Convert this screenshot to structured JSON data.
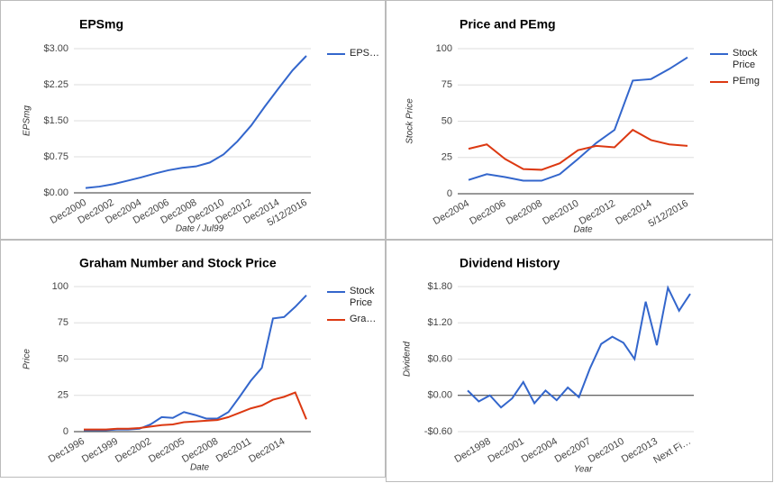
{
  "chart_data": [
    {
      "type": "line",
      "title": "EPSmg",
      "xlabel": "Date / Jul99",
      "ylabel": "EPSmg",
      "legend": "right",
      "categories": [
        "Dec2000",
        null,
        "Dec2002",
        null,
        "Dec2004",
        null,
        "Dec2006",
        null,
        "Dec2008",
        null,
        "Dec2010",
        null,
        "Dec2012",
        null,
        "Dec2014",
        null,
        "5/12/2016"
      ],
      "series": [
        {
          "name": "EPS…",
          "color": "#3366cc",
          "values": [
            0.1,
            0.13,
            0.18,
            0.25,
            0.32,
            0.4,
            0.47,
            0.52,
            0.55,
            0.63,
            0.8,
            1.07,
            1.4,
            1.8,
            2.18,
            2.55,
            2.85
          ]
        }
      ],
      "ylim": [
        0,
        3
      ],
      "yticks": [
        {
          "value": 0,
          "label": "$0.00"
        },
        {
          "value": 0.75,
          "label": "$0.75"
        },
        {
          "value": 1.5,
          "label": "$1.50"
        },
        {
          "value": 2.25,
          "label": "$2.25"
        },
        {
          "value": 3,
          "label": "$3.00"
        }
      ],
      "grid": true
    },
    {
      "type": "line",
      "title": "Price and PEmg",
      "xlabel": "Date",
      "ylabel": "Stock Price",
      "legend": "right",
      "categories": [
        "Dec2004",
        null,
        "Dec2006",
        null,
        "Dec2008",
        null,
        "Dec2010",
        null,
        "Dec2012",
        null,
        "Dec2014",
        null,
        "5/12/2016"
      ],
      "series": [
        {
          "name": "Stock Price",
          "color": "#3366cc",
          "values": [
            9.5,
            13.5,
            11.5,
            9,
            9,
            13.5,
            24,
            35,
            44,
            78,
            79,
            86,
            94
          ]
        },
        {
          "name": "PEmg",
          "color": "#dc3912",
          "values": [
            31,
            34,
            24,
            17,
            16.5,
            21,
            30,
            33,
            32,
            44,
            37,
            34,
            33
          ]
        }
      ],
      "ylim": [
        0,
        100
      ],
      "yticks": [
        0,
        25,
        50,
        75,
        100
      ],
      "grid": true
    },
    {
      "type": "line",
      "title": "Graham Number and Stock Price",
      "xlabel": "Date",
      "ylabel": "Price",
      "legend": "right",
      "categories": [
        "Dec1996",
        null,
        null,
        "Dec1999",
        null,
        null,
        "Dec2002",
        null,
        null,
        "Dec2005",
        null,
        null,
        "Dec2008",
        null,
        null,
        "Dec2011",
        null,
        null,
        "Dec2014",
        null,
        null
      ],
      "series": [
        {
          "name": "Stock Price",
          "color": "#3366cc",
          "values": [
            1,
            1,
            1,
            1.5,
            1.5,
            2,
            5,
            10,
            9.5,
            13.5,
            11.5,
            9,
            9,
            13.5,
            24,
            35,
            44,
            78,
            79,
            86,
            94
          ]
        },
        {
          "name": "Gra…",
          "color": "#dc3912",
          "values": [
            1.5,
            1.5,
            1.5,
            2,
            2,
            2.5,
            3.5,
            4.5,
            5,
            6.5,
            7,
            7.5,
            8,
            10,
            13,
            16,
            18,
            22,
            24,
            27,
            8.5
          ]
        }
      ],
      "ylim": [
        0,
        100
      ],
      "yticks": [
        0,
        25,
        50,
        75,
        100
      ],
      "grid": true
    },
    {
      "type": "line",
      "title": "Dividend History",
      "xlabel": "Year",
      "ylabel": "Dividend",
      "categories": [
        null,
        null,
        "Dec1998",
        null,
        null,
        "Dec2001",
        null,
        null,
        "Dec2004",
        null,
        null,
        "Dec2007",
        null,
        null,
        "Dec2010",
        null,
        null,
        "Dec2013",
        null,
        null,
        "Next Fi…"
      ],
      "series": [
        {
          "name": "Dividend",
          "color": "#3366cc",
          "values": [
            0.08,
            -0.1,
            0.0,
            -0.2,
            -0.05,
            0.22,
            -0.13,
            0.08,
            -0.08,
            0.13,
            -0.03,
            0.45,
            0.85,
            0.97,
            0.87,
            0.6,
            1.55,
            0.83,
            1.78,
            1.4,
            1.68
          ]
        }
      ],
      "ylim": [
        -0.6,
        1.8
      ],
      "yticks": [
        {
          "value": -0.6,
          "label": "-$0.60"
        },
        {
          "value": 0,
          "label": "$0.00"
        },
        {
          "value": 0.6,
          "label": "$0.60"
        },
        {
          "value": 1.2,
          "label": "$1.20"
        },
        {
          "value": 1.8,
          "label": "$1.80"
        }
      ],
      "grid": true
    }
  ]
}
